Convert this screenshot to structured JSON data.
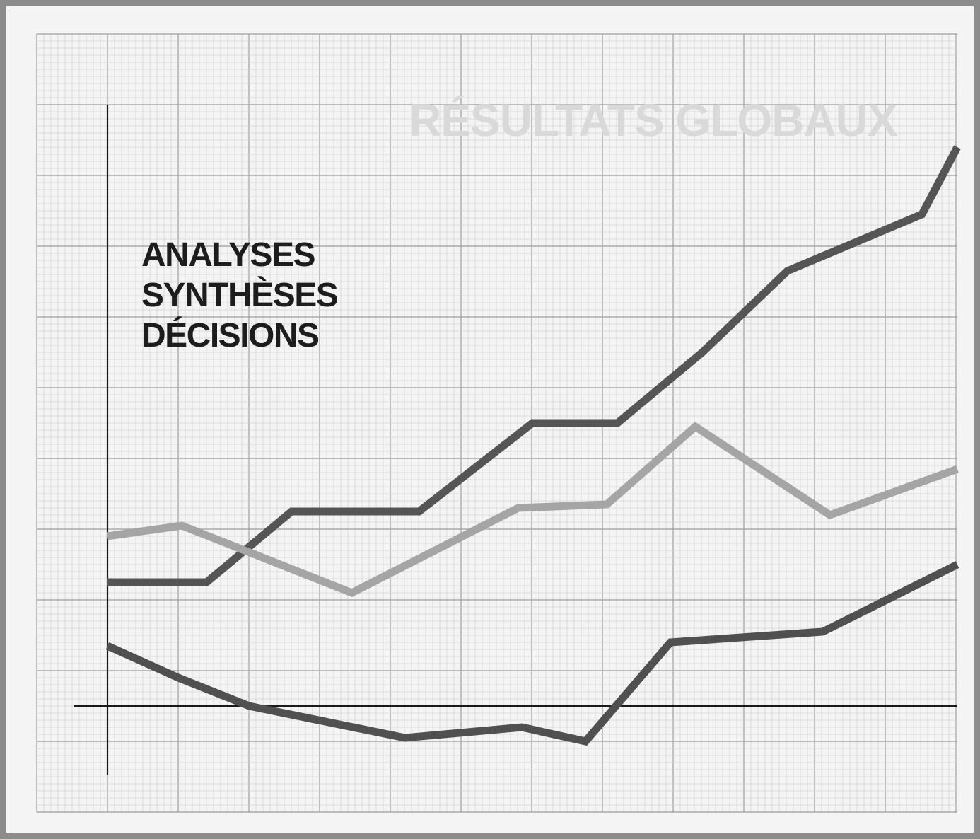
{
  "headline": {
    "line1": "ANALYSES",
    "line2": "SYNTHÈSES",
    "line3": "DÉCISIONS"
  },
  "watermark": "RÉSULTATS GLOBAUX",
  "colors": {
    "background": "#f4f4f4",
    "frame": "#8c8c8c",
    "grid_major": "#a9a9a9",
    "grid_minor": "#d3d3d3",
    "axis": "#1a1a1a",
    "headline": "#1d1d1d",
    "watermark": "#d9d9d9"
  },
  "chart_data": {
    "type": "line",
    "title": "RÉSULTATS GLOBAUX",
    "xlabel": "",
    "ylabel": "",
    "xlim": [
      0,
      12
    ],
    "ylim": [
      -1,
      8.5
    ],
    "grid": true,
    "legend": "none",
    "series": [
      {
        "color": "#555555",
        "x": [
          0,
          1.4,
          2.6,
          4.4,
          6.0,
          7.2,
          8.4,
          9.6,
          11.5,
          12
        ],
        "y": [
          1.75,
          1.75,
          2.75,
          2.75,
          4.0,
          4.0,
          5.0,
          6.15,
          6.95,
          7.9
        ]
      },
      {
        "color": "#a5a5a5",
        "x": [
          0,
          1.05,
          3.45,
          5.8,
          7.05,
          8.3,
          10.2,
          12
        ],
        "y": [
          2.4,
          2.55,
          1.6,
          2.8,
          2.85,
          3.95,
          2.7,
          3.35
        ]
      },
      {
        "color": "#505050",
        "x": [
          0,
          1.0,
          2.0,
          4.2,
          5.85,
          6.75,
          7.95,
          10.1,
          12
        ],
        "y": [
          0.85,
          0.4,
          0.0,
          -0.45,
          -0.3,
          -0.5,
          0.9,
          1.05,
          2.0
        ]
      }
    ]
  }
}
